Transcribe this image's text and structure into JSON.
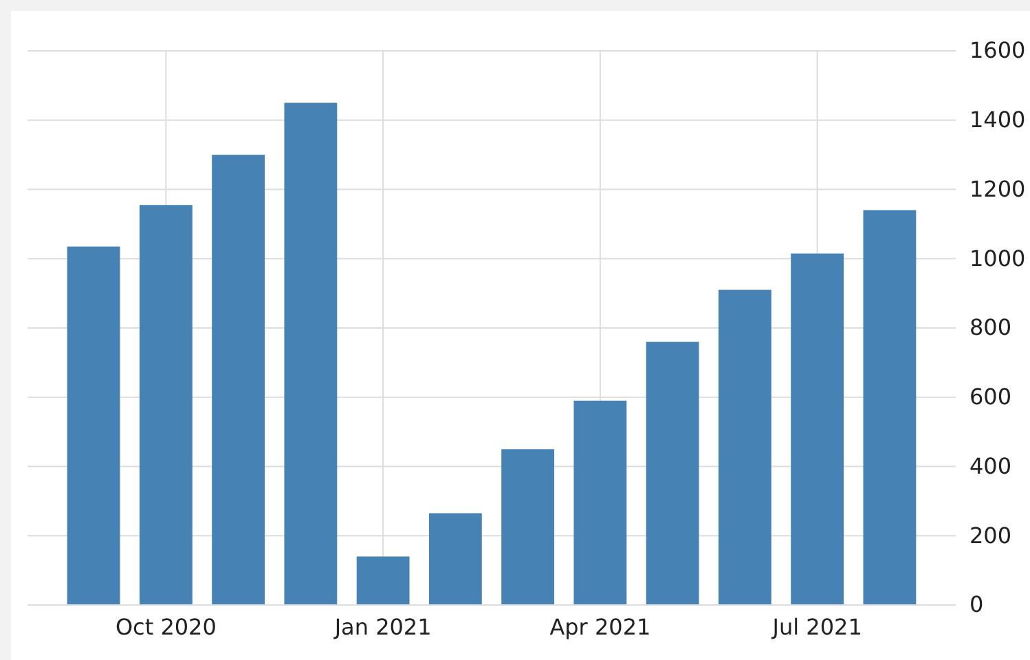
{
  "chart_data": {
    "type": "bar",
    "categories": [
      null,
      "Oct 2020",
      null,
      null,
      "Jan 2021",
      null,
      null,
      "Apr 2021",
      null,
      null,
      "Jul 2021",
      null
    ],
    "values": [
      1035,
      1155,
      1300,
      1450,
      140,
      265,
      450,
      590,
      760,
      910,
      1015,
      1140
    ],
    "color": "#4682b4",
    "ylim": [
      0,
      1600
    ],
    "yticks": [
      0,
      200,
      400,
      600,
      800,
      1000,
      1200,
      1400,
      1600
    ],
    "grid": true
  }
}
